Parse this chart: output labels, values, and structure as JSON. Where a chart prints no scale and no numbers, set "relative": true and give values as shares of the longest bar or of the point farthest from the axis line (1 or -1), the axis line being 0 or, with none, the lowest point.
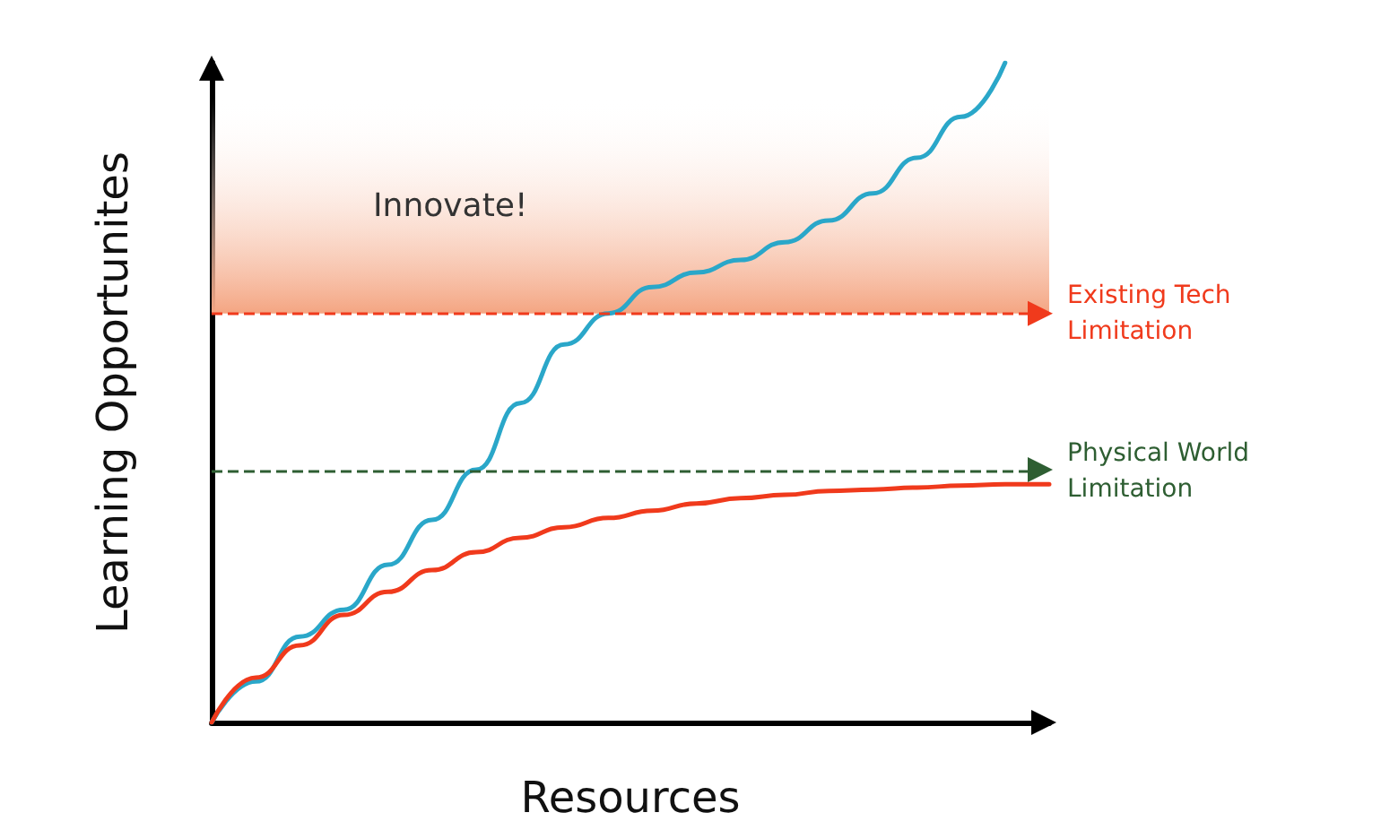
{
  "chart_data": {
    "type": "line",
    "relative": true,
    "xlabel": "Resources",
    "ylabel": "Learning Opportunites",
    "categories": [
      null,
      null,
      null,
      null,
      null,
      null,
      null,
      null,
      null,
      null,
      null,
      null,
      null,
      null,
      null,
      null,
      null,
      null,
      null,
      null
    ],
    "series": [
      {
        "color": "#2aa7c9",
        "values": [
          0,
          0.062,
          0.13,
          0.171,
          0.239,
          0.307,
          0.383,
          0.484,
          0.573,
          0.62,
          0.66,
          0.682,
          0.701,
          0.728,
          0.761,
          0.802,
          0.856,
          0.918,
          1,
          null
        ]
      },
      {
        "color": "#f03a1c",
        "values": [
          0,
          0.068,
          0.117,
          0.163,
          0.198,
          0.231,
          0.258,
          0.28,
          0.296,
          0.31,
          0.321,
          0.332,
          0.34,
          0.345,
          0.351,
          0.353,
          0.356,
          0.359,
          0.361,
          0.361
        ]
      }
    ],
    "ref_lines": [
      {
        "axis": "y",
        "value": 0.62,
        "label": "Existing Tech Limitation",
        "color": "#f03a1c",
        "line_style": "dashed"
      },
      {
        "axis": "y",
        "value": 0.383,
        "label": "Physical World Limitation",
        "color": "#2e5e32",
        "line_style": "dashed"
      }
    ],
    "bands": [
      {
        "axis": "y",
        "from": 0.62,
        "to": 0.946,
        "label": "Innovate!",
        "color": "#f4a582"
      }
    ],
    "marker": "none",
    "line_style": "solid",
    "grid": false
  }
}
